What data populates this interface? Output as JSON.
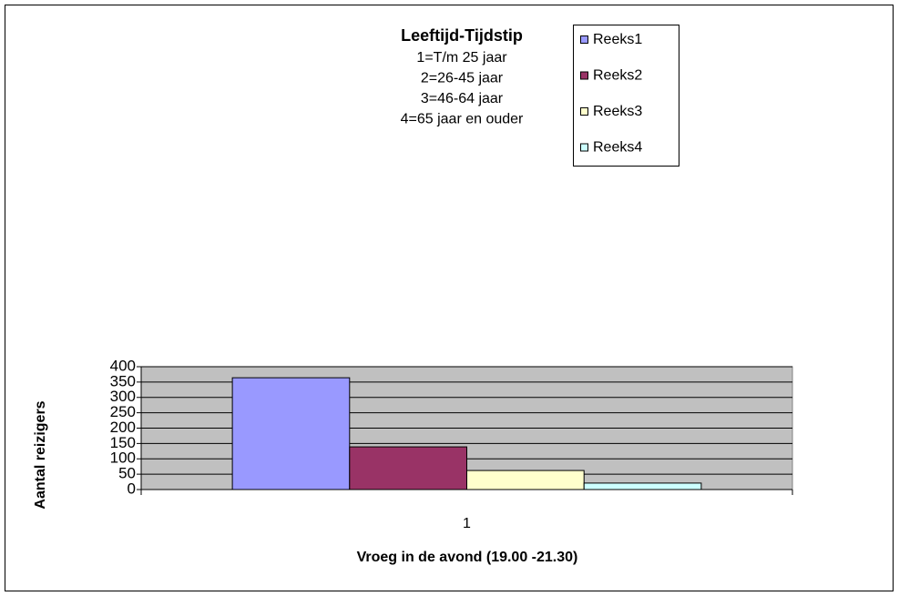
{
  "chart_data": {
    "type": "bar",
    "title": "Leeftijd-Tijdstip",
    "subtitle_lines": [
      "1=T/m 25 jaar",
      "2=26-45 jaar",
      "3=46-64 jaar",
      "4=65 jaar en ouder"
    ],
    "xlabel": "Vroeg in de avond (19.00 -21.30)",
    "ylabel": "Aantal reizigers",
    "categories": [
      "1"
    ],
    "series": [
      {
        "name": "Reeks1",
        "color": "#9999ff",
        "values": [
          364
        ]
      },
      {
        "name": "Reeks2",
        "color": "#993366",
        "values": [
          139
        ]
      },
      {
        "name": "Reeks3",
        "color": "#ffffcc",
        "values": [
          62
        ]
      },
      {
        "name": "Reeks4",
        "color": "#ccffff",
        "values": [
          21
        ]
      }
    ],
    "ylim": [
      0,
      400
    ],
    "yticks": [
      0,
      50,
      100,
      150,
      200,
      250,
      300,
      350,
      400
    ],
    "grid": true,
    "legend": "top-right"
  }
}
